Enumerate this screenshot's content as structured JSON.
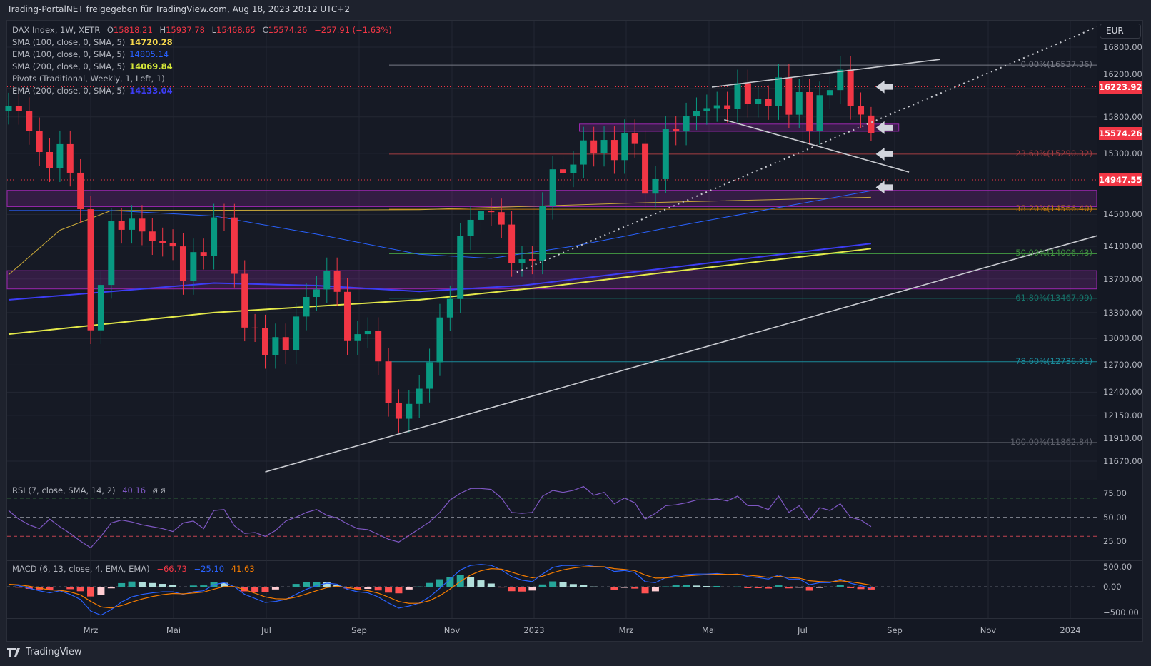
{
  "header": {
    "title": "Trading-PortalNET freigegeben für TradingView.com, Aug 18, 2023 20:12 UTC+2"
  },
  "legend": {
    "symbol": "DAX Index, 1W, XETR",
    "o_label": "O",
    "o": "15818.21",
    "h_label": "H",
    "h": "15937.78",
    "l_label": "L",
    "l": "15468.65",
    "c_label": "C",
    "c": "15574.26",
    "change": "−257.91 (−1.63%)",
    "indicators": [
      {
        "label": "SMA (100, close, 0, SMA, 5)",
        "value": "14720.28",
        "color": "#f7d94c"
      },
      {
        "label": "EMA (100, close, 0, SMA, 5)",
        "value": "14805.14",
        "color": "#2962ff"
      },
      {
        "label": "SMA (200, close, 0, SMA, 5)",
        "value": "14069.84",
        "color": "#d4e639"
      },
      {
        "label": "Pivots (Traditional, Weekly, 1, Left, 1)",
        "value": null,
        "color": "#b2b5be"
      },
      {
        "label": "EMA (200, close, 0, SMA, 5)",
        "value": "14133.04",
        "color": "#3d3df5"
      }
    ]
  },
  "currency_button": "EUR",
  "price_axis": {
    "ticks": [
      16800,
      16200,
      15800,
      15300,
      14500,
      14100,
      13700,
      13300,
      13000,
      12700,
      12400,
      12150,
      11910,
      11670
    ],
    "badges": [
      {
        "value": 16223.92,
        "label": "16223.92"
      },
      {
        "value": 15574.26,
        "label": "15574.26"
      },
      {
        "value": 14947.55,
        "label": "14947.55"
      }
    ]
  },
  "fib_levels": [
    {
      "value": 16537.36,
      "label": "0.00%(16537.36)",
      "color": "#787b86"
    },
    {
      "value": 15290.32,
      "label": "23.60%(15290.32)",
      "color": "#a23a3f"
    },
    {
      "value": 14566.4,
      "label": "38.20%(14566.40)",
      "color": "#c47a0f"
    },
    {
      "value": 14006.43,
      "label": "50.00%(14006.43)",
      "color": "#3f8e3f"
    },
    {
      "value": 13467.99,
      "label": "61.80%(13467.99)",
      "color": "#16736a"
    },
    {
      "value": 12736.91,
      "label": "78.60%(12736.91)",
      "color": "#1a8a9a"
    },
    {
      "value": 11862.84,
      "label": "100.00%(11862.84)",
      "color": "#5d606b"
    }
  ],
  "time_axis": [
    "Mrz",
    "Mai",
    "Jul",
    "Sep",
    "Nov",
    "2023",
    "Mrz",
    "Mai",
    "Jul",
    "Sep",
    "Nov",
    "2024"
  ],
  "colors": {
    "up": "#089981",
    "down": "#f23645",
    "zone": "#9c27b0"
  },
  "chart_data": {
    "type": "candlestick",
    "first_open": 15885,
    "closes": [
      15948,
      15883,
      15604,
      15318,
      15100,
      15425,
      15042,
      14567,
      13094,
      13628,
      14413,
      14305,
      14446,
      14284,
      14163,
      14142,
      14098,
      13675,
      14027,
      13982,
      14462,
      14461,
      13762,
      13126,
      13118,
      12813,
      13016,
      12865,
      13254,
      13484,
      13574,
      13795,
      13545,
      12971,
      13050,
      13088,
      12741,
      12284,
      12114,
      12273,
      12438,
      12731,
      13243,
      13460,
      14224,
      14431,
      14541,
      14529,
      14371,
      13893,
      13940,
      13924,
      14610,
      15087,
      15033,
      15150,
      15476,
      15308,
      15482,
      15210,
      15578,
      15428,
      14768,
      14957,
      15629,
      15598,
      15808,
      15882,
      15922,
      15961,
      15914,
      16275,
      15984,
      16051,
      15950,
      16358,
      15830,
      16148,
      15603,
      16105,
      16177,
      16469,
      15952,
      15832,
      15574
    ],
    "last": {
      "o": 15818.21,
      "h": 15937.78,
      "l": 15468.65,
      "c": 15574.26
    },
    "ma": {
      "sma200": [
        [
          0,
          13050
        ],
        [
          20,
          13300
        ],
        [
          40,
          13450
        ],
        [
          52,
          13600
        ],
        [
          62,
          13750
        ],
        [
          84,
          14069.84
        ]
      ],
      "ema200": [
        [
          0,
          13450
        ],
        [
          20,
          13650
        ],
        [
          30,
          13620
        ],
        [
          40,
          13550
        ],
        [
          50,
          13620
        ],
        [
          62,
          13800
        ],
        [
          84,
          14133.04
        ]
      ],
      "sma100": [
        [
          0,
          13750
        ],
        [
          5,
          14300
        ],
        [
          10,
          14550
        ],
        [
          40,
          14560
        ],
        [
          62,
          14650
        ],
        [
          84,
          14720.28
        ]
      ],
      "ema100": [
        [
          0,
          14550
        ],
        [
          10,
          14550
        ],
        [
          20,
          14480
        ],
        [
          30,
          14250
        ],
        [
          40,
          14000
        ],
        [
          47,
          13950
        ],
        [
          55,
          14100
        ],
        [
          65,
          14350
        ],
        [
          84,
          14805.14
        ]
      ]
    },
    "pivots": [
      16223.92,
      14947.55
    ],
    "zones": [
      [
        14600,
        14810
      ],
      [
        13580,
        13800
      ]
    ],
    "box": {
      "from": 55.6,
      "to": 86.7,
      "low": 15600,
      "high": 15700
    },
    "trendlines": [
      {
        "name": "long-support",
        "a": [
          25,
          11560
        ],
        "b": [
          106,
          14230
        ],
        "style": "solid"
      },
      {
        "name": "dotted-support",
        "a": [
          49.5,
          13780
        ],
        "b": [
          106,
          17100
        ],
        "style": "dotted"
      },
      {
        "name": "upper-channel",
        "a": [
          68.5,
          16220
        ],
        "b": [
          90.7,
          16620
        ],
        "style": "solid"
      },
      {
        "name": "lower-channel",
        "a": [
          69.7,
          15760
        ],
        "b": [
          87.7,
          15050
        ],
        "style": "solid"
      }
    ],
    "arrows": [
      16223,
      15650,
      15290,
      14850
    ],
    "rsi": {
      "label": "RSI (7, close, SMA, 14, 2)",
      "value": "40.16",
      "extra": "ø  ø",
      "axis": [
        "75.00",
        "50.00",
        "25.00"
      ],
      "values": [
        57,
        48,
        42,
        38,
        48,
        40,
        33,
        25,
        18,
        30,
        44,
        47,
        45,
        42,
        40,
        38,
        35,
        44,
        46,
        38,
        57,
        58,
        41,
        33,
        34,
        30,
        36,
        46,
        50,
        55,
        58,
        52,
        49,
        43,
        38,
        37,
        32,
        27,
        24,
        31,
        38,
        45,
        55,
        68,
        75,
        80,
        80,
        79,
        70,
        55,
        54,
        55,
        72,
        78,
        76,
        78,
        82,
        73,
        76,
        64,
        70,
        65,
        48,
        54,
        62,
        63,
        65,
        68,
        68,
        69,
        67,
        72,
        62,
        62,
        58,
        72,
        55,
        62,
        47,
        60,
        57,
        64,
        50,
        47,
        40.16
      ]
    },
    "macd": {
      "label": "MACD (6, 13, close, 4, EMA, EMA)",
      "hist": "−66.73",
      "macd": "−25.10",
      "signal": "41.63",
      "axis": [
        "500.00",
        "0.00",
        "−500.00"
      ],
      "values": [
        50,
        20,
        -30,
        -80,
        -120,
        -80,
        -150,
        -250,
        -480,
        -560,
        -450,
        -300,
        -200,
        -150,
        -120,
        -100,
        -100,
        -150,
        -100,
        -80,
        40,
        80,
        0,
        -150,
        -230,
        -310,
        -290,
        -250,
        -150,
        -50,
        20,
        70,
        50,
        -50,
        -100,
        -120,
        -200,
        -320,
        -420,
        -380,
        -320,
        -200,
        -30,
        150,
        330,
        420,
        440,
        420,
        330,
        200,
        130,
        100,
        250,
        380,
        420,
        420,
        430,
        400,
        390,
        300,
        320,
        280,
        100,
        80,
        180,
        220,
        240,
        250,
        250,
        260,
        240,
        250,
        200,
        180,
        150,
        230,
        150,
        150,
        40,
        80,
        80,
        150,
        70,
        20,
        -25.1
      ]
    }
  },
  "footer": {
    "brand": "TradingView"
  }
}
